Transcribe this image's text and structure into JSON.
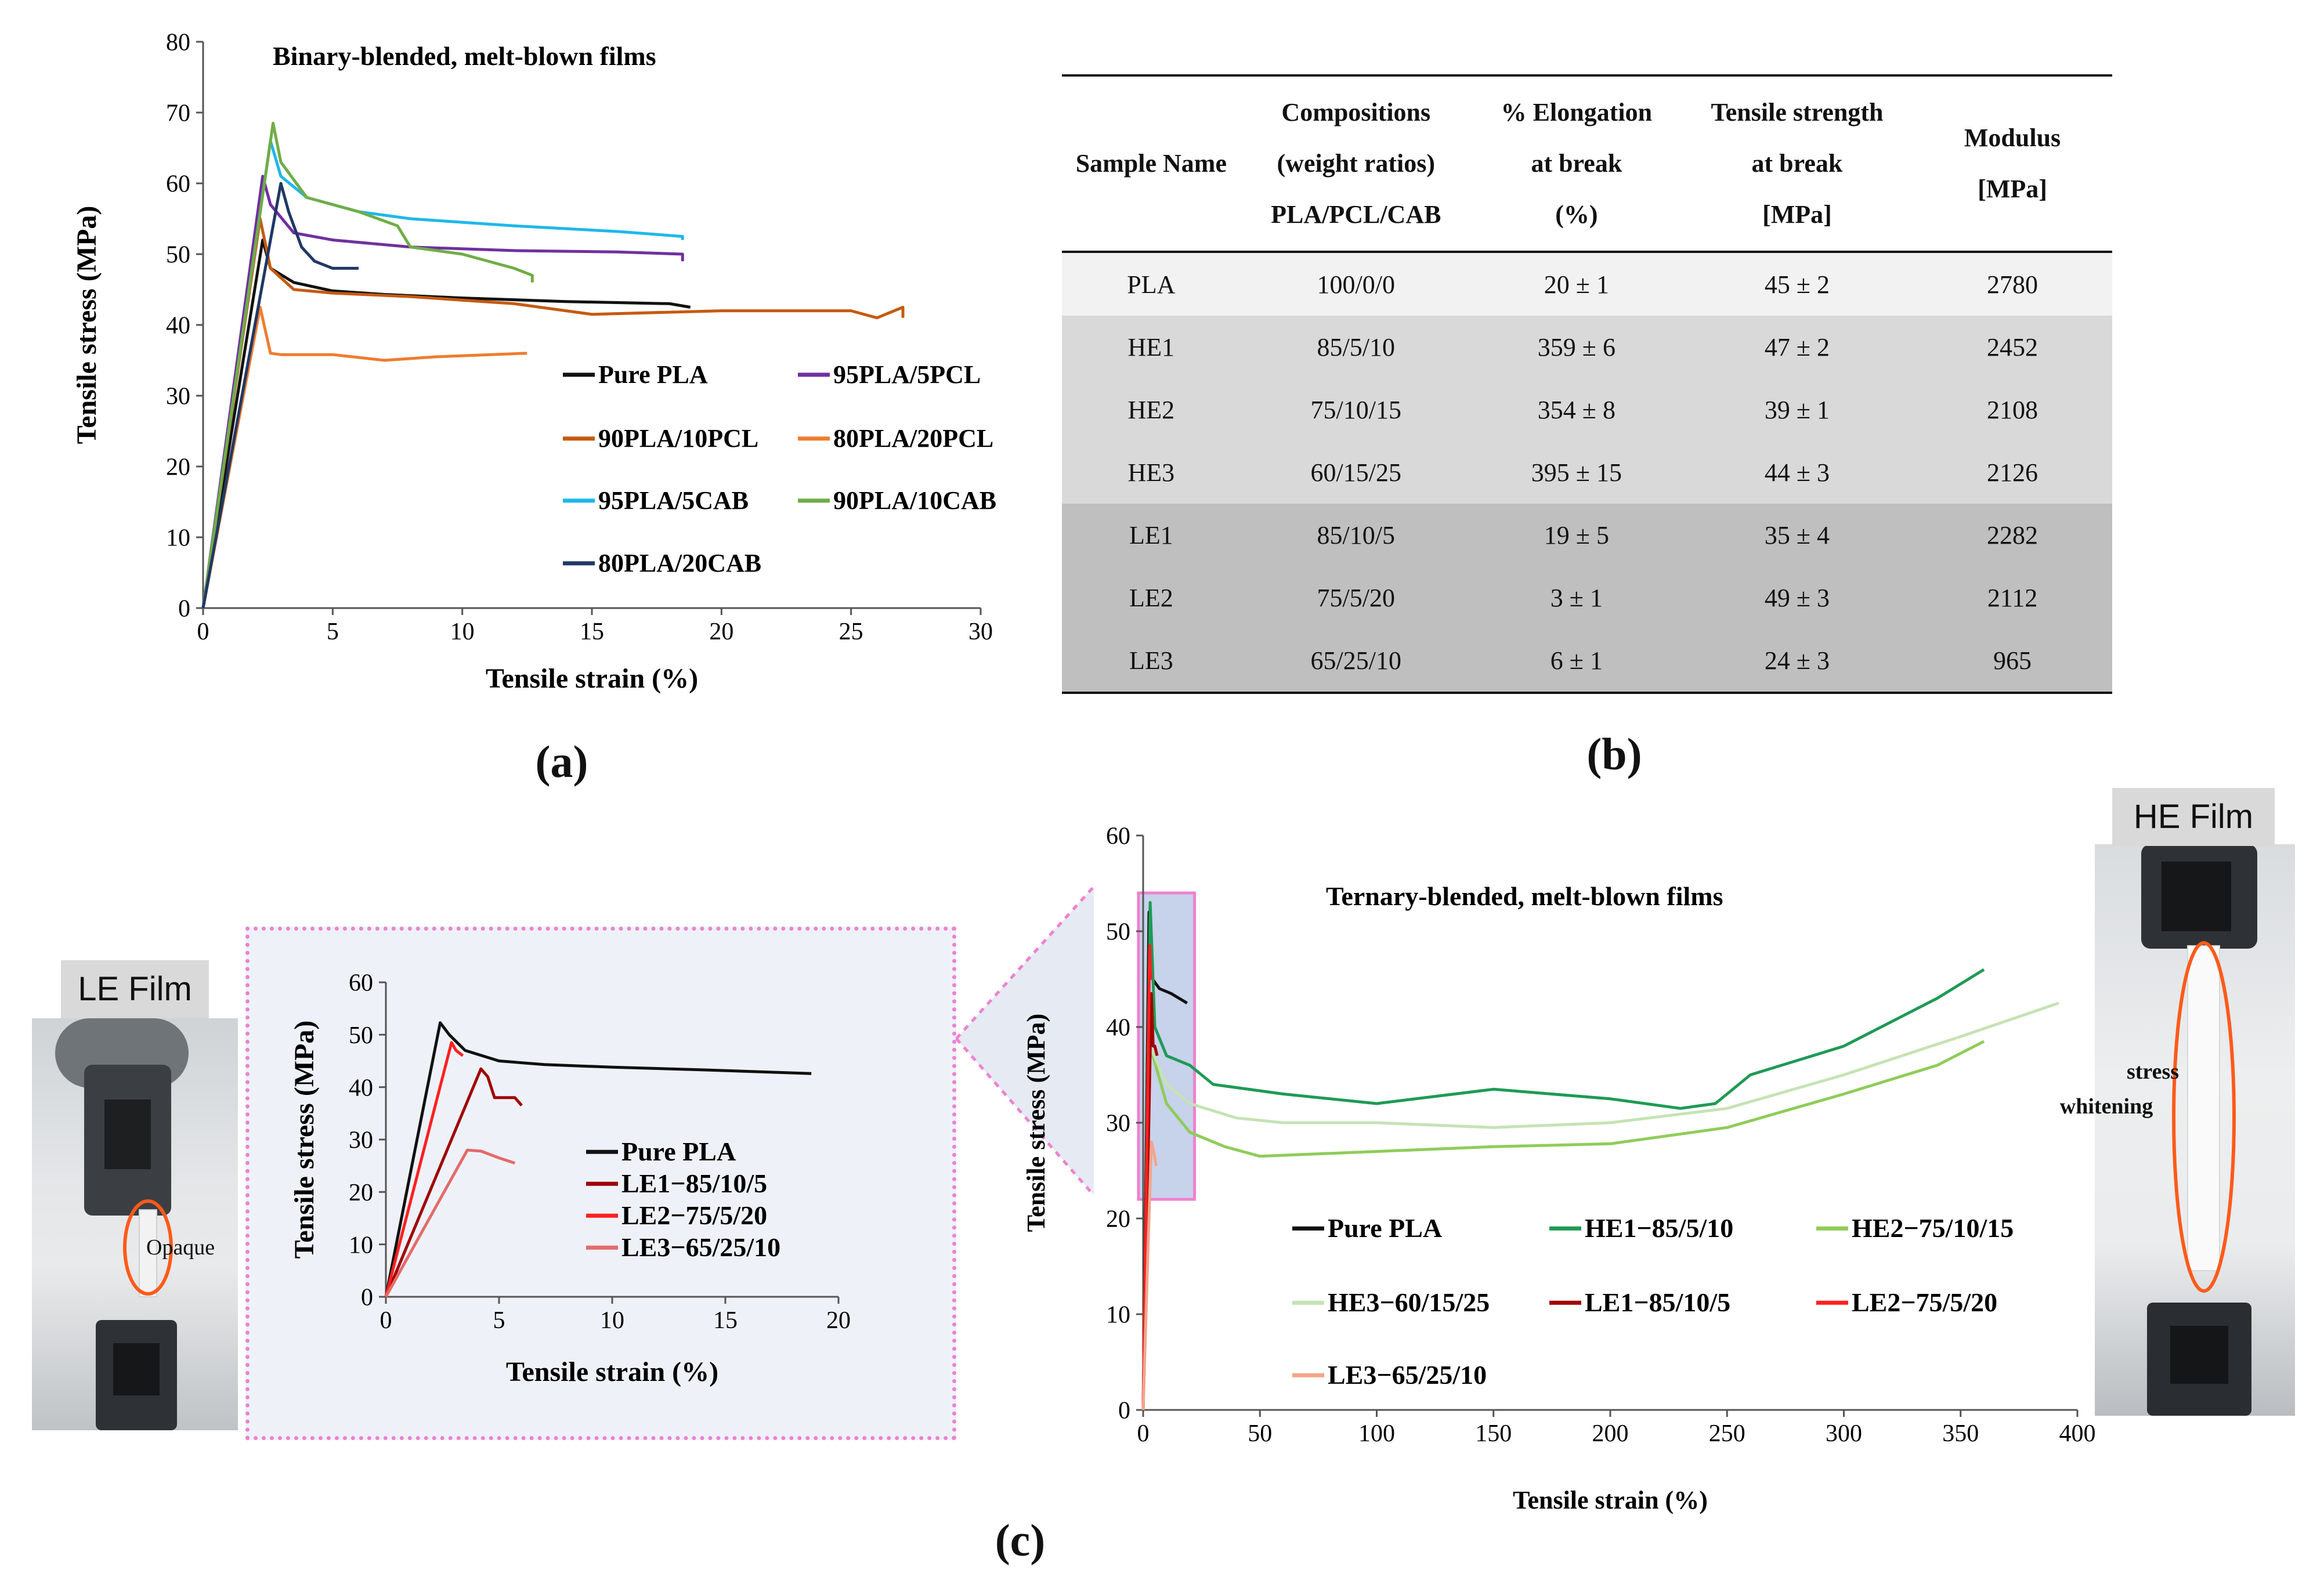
{
  "panel_labels": {
    "a": "(a)",
    "b": "(b)",
    "c": "(c)"
  },
  "chart_data": [
    {
      "id": "a",
      "type": "line",
      "title": "Binary-blended, melt-blown films",
      "xlabel": "Tensile strain (%)",
      "ylabel": "Tensile stress (MPa)",
      "xlim": [
        0,
        30
      ],
      "ylim": [
        0,
        80
      ],
      "xticks": [
        "0",
        "5",
        "10",
        "15",
        "20",
        "25",
        "30"
      ],
      "yticks": [
        "0",
        "10",
        "20",
        "30",
        "40",
        "50",
        "60",
        "70",
        "80"
      ],
      "series": [
        {
          "name": "Pure PLA",
          "color": "#111111",
          "x": [
            0,
            2.3,
            2.6,
            3.5,
            5,
            7,
            10,
            14,
            18,
            18.8
          ],
          "y": [
            0,
            52,
            48,
            46,
            44.8,
            44.3,
            43.8,
            43.3,
            43,
            42.5
          ]
        },
        {
          "name": "95PLA/5PCL",
          "color": "#7030a0",
          "x": [
            0,
            2.3,
            2.6,
            3.5,
            5,
            8,
            12,
            16,
            18.5,
            18.5
          ],
          "y": [
            0,
            61,
            57,
            53,
            52,
            51,
            50.5,
            50.3,
            50,
            49
          ]
        },
        {
          "name": "90PLA/10PCL",
          "color": "#c55a11",
          "x": [
            0,
            2.2,
            2.6,
            3.5,
            5,
            8,
            12,
            15,
            20,
            25,
            26,
            27,
            27
          ],
          "y": [
            0,
            55,
            48,
            45,
            44.5,
            44,
            43,
            41.5,
            42,
            42,
            41,
            42.5,
            41
          ]
        },
        {
          "name": "80PLA/20PCL",
          "color": "#ed7d31",
          "x": [
            0,
            2.2,
            2.6,
            3,
            5,
            7,
            9,
            12.5
          ],
          "y": [
            0,
            42.5,
            36,
            35.8,
            35.8,
            35,
            35.5,
            36
          ]
        },
        {
          "name": "95PLA/5CAB",
          "color": "#1fb8e8",
          "x": [
            0,
            2.6,
            3,
            4,
            6,
            8,
            12,
            16,
            18.5,
            18.5
          ],
          "y": [
            0,
            66,
            61,
            58,
            56,
            55,
            54,
            53.2,
            52.5,
            52
          ]
        },
        {
          "name": "90PLA/10CAB",
          "color": "#70ad47",
          "x": [
            0,
            2.7,
            3,
            4,
            6,
            7.5,
            8,
            10,
            12,
            12.7,
            12.7
          ],
          "y": [
            0,
            68.5,
            63,
            58,
            56,
            54,
            51,
            50,
            48,
            47,
            46
          ]
        },
        {
          "name": "80PLA/20CAB",
          "color": "#203864",
          "x": [
            0,
            3,
            3.3,
            3.8,
            4.3,
            5,
            6
          ],
          "y": [
            0,
            60,
            56,
            51,
            49,
            48,
            48
          ]
        }
      ]
    },
    {
      "id": "c-main",
      "type": "line",
      "title": "Ternary-blended, melt-blown films",
      "xlabel": "Tensile strain (%)",
      "ylabel": "Tensile stress (MPa)",
      "xlim": [
        0,
        400
      ],
      "ylim": [
        0,
        60
      ],
      "xticks": [
        "0",
        "50",
        "100",
        "150",
        "200",
        "250",
        "300",
        "350",
        "400"
      ],
      "yticks": [
        "0",
        "10",
        "20",
        "30",
        "40",
        "50",
        "60"
      ],
      "series": [
        {
          "name": "Pure PLA",
          "color": "#111111",
          "x": [
            0,
            2.5,
            4,
            7,
            12,
            18.8
          ],
          "y": [
            0,
            52,
            45,
            44,
            43.5,
            42.5
          ]
        },
        {
          "name": "HE1−85/5/10",
          "color": "#1f9a55",
          "x": [
            0,
            3,
            5,
            10,
            20,
            30,
            60,
            100,
            150,
            200,
            230,
            245,
            260,
            300,
            340,
            360
          ],
          "y": [
            0,
            53,
            40,
            37,
            36,
            34,
            33,
            32,
            33.5,
            32.5,
            31.5,
            32,
            35,
            38,
            43,
            46
          ]
        },
        {
          "name": "HE2−75/10/15",
          "color": "#8fcc5a",
          "x": [
            0,
            3,
            10,
            20,
            35,
            50,
            100,
            150,
            200,
            250,
            300,
            340,
            360
          ],
          "y": [
            0,
            38,
            32,
            29,
            27.5,
            26.5,
            27,
            27.5,
            27.8,
            29.5,
            33,
            36,
            38.5
          ]
        },
        {
          "name": "HE3−60/15/25",
          "color": "#c5e3b4",
          "x": [
            0,
            3,
            10,
            20,
            40,
            60,
            100,
            150,
            200,
            250,
            300,
            350,
            392
          ],
          "y": [
            0,
            38,
            34,
            32,
            30.5,
            30,
            30,
            29.5,
            30,
            31.5,
            35,
            39,
            42.5
          ]
        },
        {
          "name": "LE1−85/10/5",
          "color": "#a00000",
          "x": [
            0,
            3.5,
            4.3,
            5,
            6
          ],
          "y": [
            0,
            43.5,
            38,
            38,
            37
          ]
        },
        {
          "name": "LE2−75/5/20",
          "color": "#ff2020",
          "x": [
            0,
            2.8,
            3.1,
            3.4
          ],
          "y": [
            0,
            48.5,
            46,
            45
          ]
        },
        {
          "name": "LE3−65/25/10",
          "color": "#f2a58c",
          "x": [
            0,
            3.5,
            4.5,
            5.6
          ],
          "y": [
            0,
            28,
            27,
            25.5
          ]
        }
      ]
    },
    {
      "id": "c-inset",
      "type": "line",
      "xlabel": "Tensile strain (%)",
      "ylabel": "Tensile stress (MPa)",
      "xlim": [
        0,
        20
      ],
      "ylim": [
        0,
        60
      ],
      "xticks": [
        "0",
        "5",
        "10",
        "15",
        "20"
      ],
      "yticks": [
        "0",
        "10",
        "20",
        "30",
        "40",
        "50",
        "60"
      ],
      "series": [
        {
          "name": "Pure PLA",
          "color": "#111111",
          "x": [
            0,
            2.4,
            2.8,
            3.5,
            5,
            7,
            10,
            14,
            18.8
          ],
          "y": [
            0,
            52.3,
            50,
            47,
            45,
            44.3,
            43.8,
            43.3,
            42.6
          ]
        },
        {
          "name": "LE1−85/10/5",
          "color": "#a00000",
          "x": [
            0,
            4.2,
            4.5,
            4.8,
            5.3,
            5.7,
            6
          ],
          "y": [
            0,
            43.5,
            42,
            38,
            38,
            38,
            36.5
          ]
        },
        {
          "name": "LE2−75/5/20",
          "color": "#ff2020",
          "x": [
            0,
            2.9,
            3.1,
            3.4
          ],
          "y": [
            0,
            48.5,
            47,
            46
          ]
        },
        {
          "name": "LE3−65/25/10",
          "color": "#e56a6a",
          "x": [
            0,
            3.6,
            4.2,
            5,
            5.7
          ],
          "y": [
            0,
            28,
            27.8,
            26.5,
            25.5
          ]
        }
      ]
    }
  ],
  "table": {
    "headers": [
      [
        "Sample Name"
      ],
      [
        "Compositions",
        "(weight ratios)",
        "PLA/PCL/CAB"
      ],
      [
        "% Elongation",
        "at break",
        "(%)"
      ],
      [
        "Tensile strength",
        "at break",
        "[MPa]"
      ],
      [
        "Modulus",
        "[MPa]"
      ]
    ],
    "rows": [
      {
        "name": "PLA",
        "composition": "100/0/0",
        "elongation": "20 ± 1",
        "strength": "45 ± 2",
        "modulus": "2780",
        "shade": "#f2f2f2"
      },
      {
        "name": "HE1",
        "composition": "85/5/10",
        "elongation": "359 ± 6",
        "strength": "47 ± 2",
        "modulus": "2452",
        "shade": "#d9d9d9"
      },
      {
        "name": "HE2",
        "composition": "75/10/15",
        "elongation": "354 ± 8",
        "strength": "39 ± 1",
        "modulus": "2108",
        "shade": "#d9d9d9"
      },
      {
        "name": "HE3",
        "composition": "60/15/25",
        "elongation": "395 ± 15",
        "strength": "44 ± 3",
        "modulus": "2126",
        "shade": "#d9d9d9"
      },
      {
        "name": "LE1",
        "composition": "85/10/5",
        "elongation": "19 ± 5",
        "strength": "35 ± 4",
        "modulus": "2282",
        "shade": "#bfbfbf"
      },
      {
        "name": "LE2",
        "composition": "75/5/20",
        "elongation": "3 ± 1",
        "strength": "49 ± 3",
        "modulus": "2112",
        "shade": "#bfbfbf"
      },
      {
        "name": "LE3",
        "composition": "65/25/10",
        "elongation": "6 ± 1",
        "strength": "24 ± 3",
        "modulus": "965",
        "shade": "#bfbfbf"
      }
    ]
  },
  "photos": {
    "le_label": "LE Film",
    "le_annotation": "Opaque",
    "he_label": "HE Film",
    "he_annotation_1": "stress",
    "he_annotation_2": "whitening"
  }
}
